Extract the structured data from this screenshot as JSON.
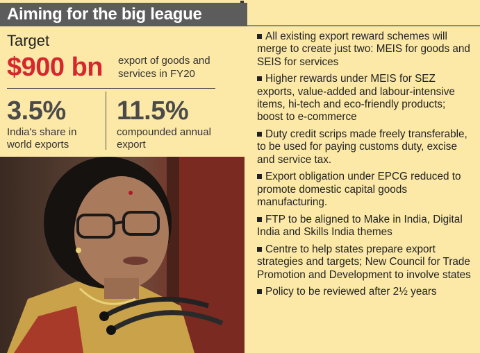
{
  "header": {
    "title": "Aiming for the big league"
  },
  "target": {
    "label": "Target",
    "amount": "$900 bn",
    "description": "export of goods and services in FY20"
  },
  "stats": [
    {
      "value": "3.5%",
      "description": "India's share in world exports"
    },
    {
      "value": "11.5%",
      "description": "compounded annual export"
    }
  ],
  "bullets": [
    "All existing export reward schemes will merge to create just two: MEIS for goods and SEIS for services",
    "Higher rewards under MEIS for SEZ exports, value-added and labour-intensive items, hi-tech and eco-friendly products; boost to e-commerce",
    "Duty credit scrips made freely transferable, to be used for paying customs duty, excise and service tax.",
    "Export obligation under EPCG reduced to promote domestic capital goods manufacturing.",
    "FTP to be aligned to Make in India, Digital India and Skills India themes",
    "Centre to help states prepare export strategies and targets; New Council for Trade Promotion and Development to involve states",
    "Policy to be reviewed after 2½ years"
  ],
  "colors": {
    "background": "#fce9a7",
    "header_bar": "#5c5c5c",
    "amount": "#d7262e"
  }
}
